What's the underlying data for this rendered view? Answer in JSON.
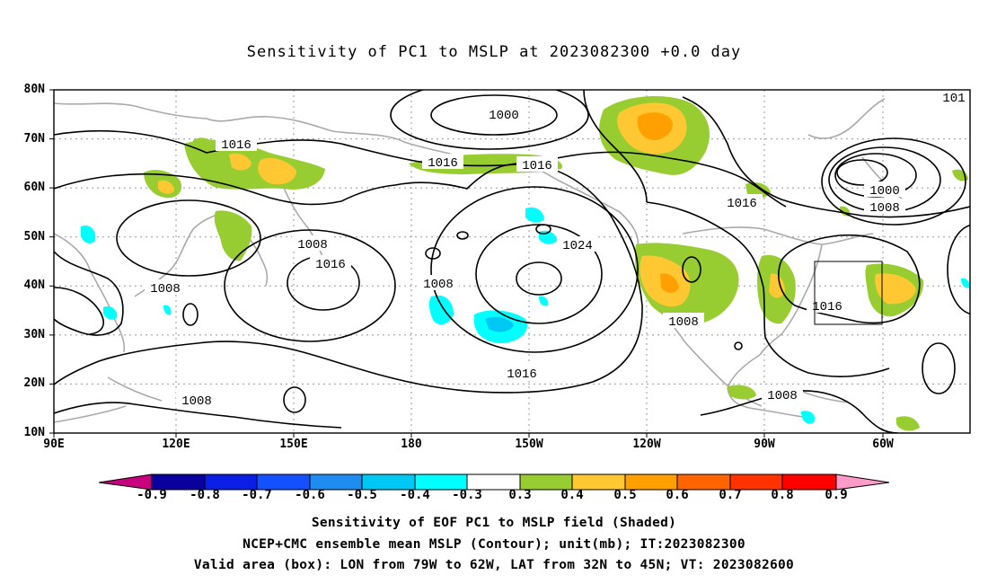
{
  "title": "Sensitivity of PC1 to MSLP at 2023082300 +0.0 day",
  "axes": {
    "lat_ticks": [
      "80N",
      "70N",
      "60N",
      "50N",
      "40N",
      "30N",
      "20N",
      "10N"
    ],
    "lon_ticks": [
      "90E",
      "120E",
      "150E",
      "180",
      "150W",
      "120W",
      "90W",
      "60W"
    ]
  },
  "contours": {
    "labels": [
      "1000",
      "1016",
      "1016",
      "1016",
      "1008",
      "1016",
      "1008",
      "1008",
      "1024",
      "1016",
      "1008",
      "1016",
      "1016",
      "1008",
      "1000",
      "1008",
      "1008",
      "101"
    ]
  },
  "valid_box": {
    "lon_from": "79W",
    "lon_to": "62W",
    "lat_from": "32N",
    "lat_to": "45N"
  },
  "colorbar": {
    "labels": [
      "-0.9",
      "-0.8",
      "-0.7",
      "-0.6",
      "-0.5",
      "-0.4",
      "-0.3",
      "0.3",
      "0.4",
      "0.5",
      "0.6",
      "0.7",
      "0.8",
      "0.9"
    ],
    "colors": [
      "#c8007e",
      "#0a00a0",
      "#0a1ee6",
      "#1450ff",
      "#1e8cf0",
      "#00c8f5",
      "#00ffff",
      "#ffffff",
      "#98cd32",
      "#ffc832",
      "#ffa000",
      "#ff6400",
      "#ff3200",
      "#ff0000",
      "#ff9bc8"
    ]
  },
  "captions": [
    "Sensitivity of EOF PC1 to MSLP field (Shaded)",
    "NCEP+CMC ensemble mean MSLP (Contour); unit(mb); IT:2023082300",
    "Valid area (box): LON from 79W to 62W, LAT from 32N to 45N; VT: 2023082600"
  ]
}
